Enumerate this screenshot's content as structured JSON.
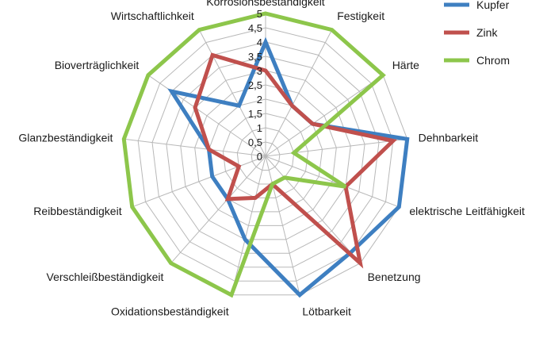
{
  "chart_data": {
    "type": "radar",
    "categories": [
      "Korrosionsbeständigkeit",
      "Festigkeit",
      "Härte",
      "Dehnbarkeit",
      "elektrische Leitfähigkeit",
      "Benetzung",
      "Lötbarkeit",
      "Oxidationsbeständigkeit",
      "Verschleißbeständigkeit",
      "Reibbeständigkeit",
      "Glanzbeständigkeit",
      "Bioverträglichkeit",
      "Wirtschaftlichkeit"
    ],
    "tick_labels": [
      "0",
      "0,5",
      "1",
      "1,5",
      "2",
      "2,5",
      "3",
      "3,5",
      "4",
      "4,5",
      "5"
    ],
    "rlim": [
      0,
      5
    ],
    "series": [
      {
        "name": "Kupfer",
        "color": "#3e7fc1",
        "values": [
          4,
          2,
          2,
          5,
          5,
          4.5,
          5,
          3,
          2,
          2,
          2,
          4,
          2
        ]
      },
      {
        "name": "Zink",
        "color": "#c0504d",
        "values": [
          3,
          2,
          2,
          4.5,
          3,
          5,
          1,
          1.5,
          2,
          1,
          2,
          3,
          4
        ]
      },
      {
        "name": "Chrom",
        "color": "#8dc64b",
        "values": [
          5,
          5,
          5,
          1,
          3,
          1,
          1,
          5,
          5,
          5,
          5,
          5,
          5
        ]
      }
    ],
    "legend_position": "top-right",
    "grid": true
  }
}
